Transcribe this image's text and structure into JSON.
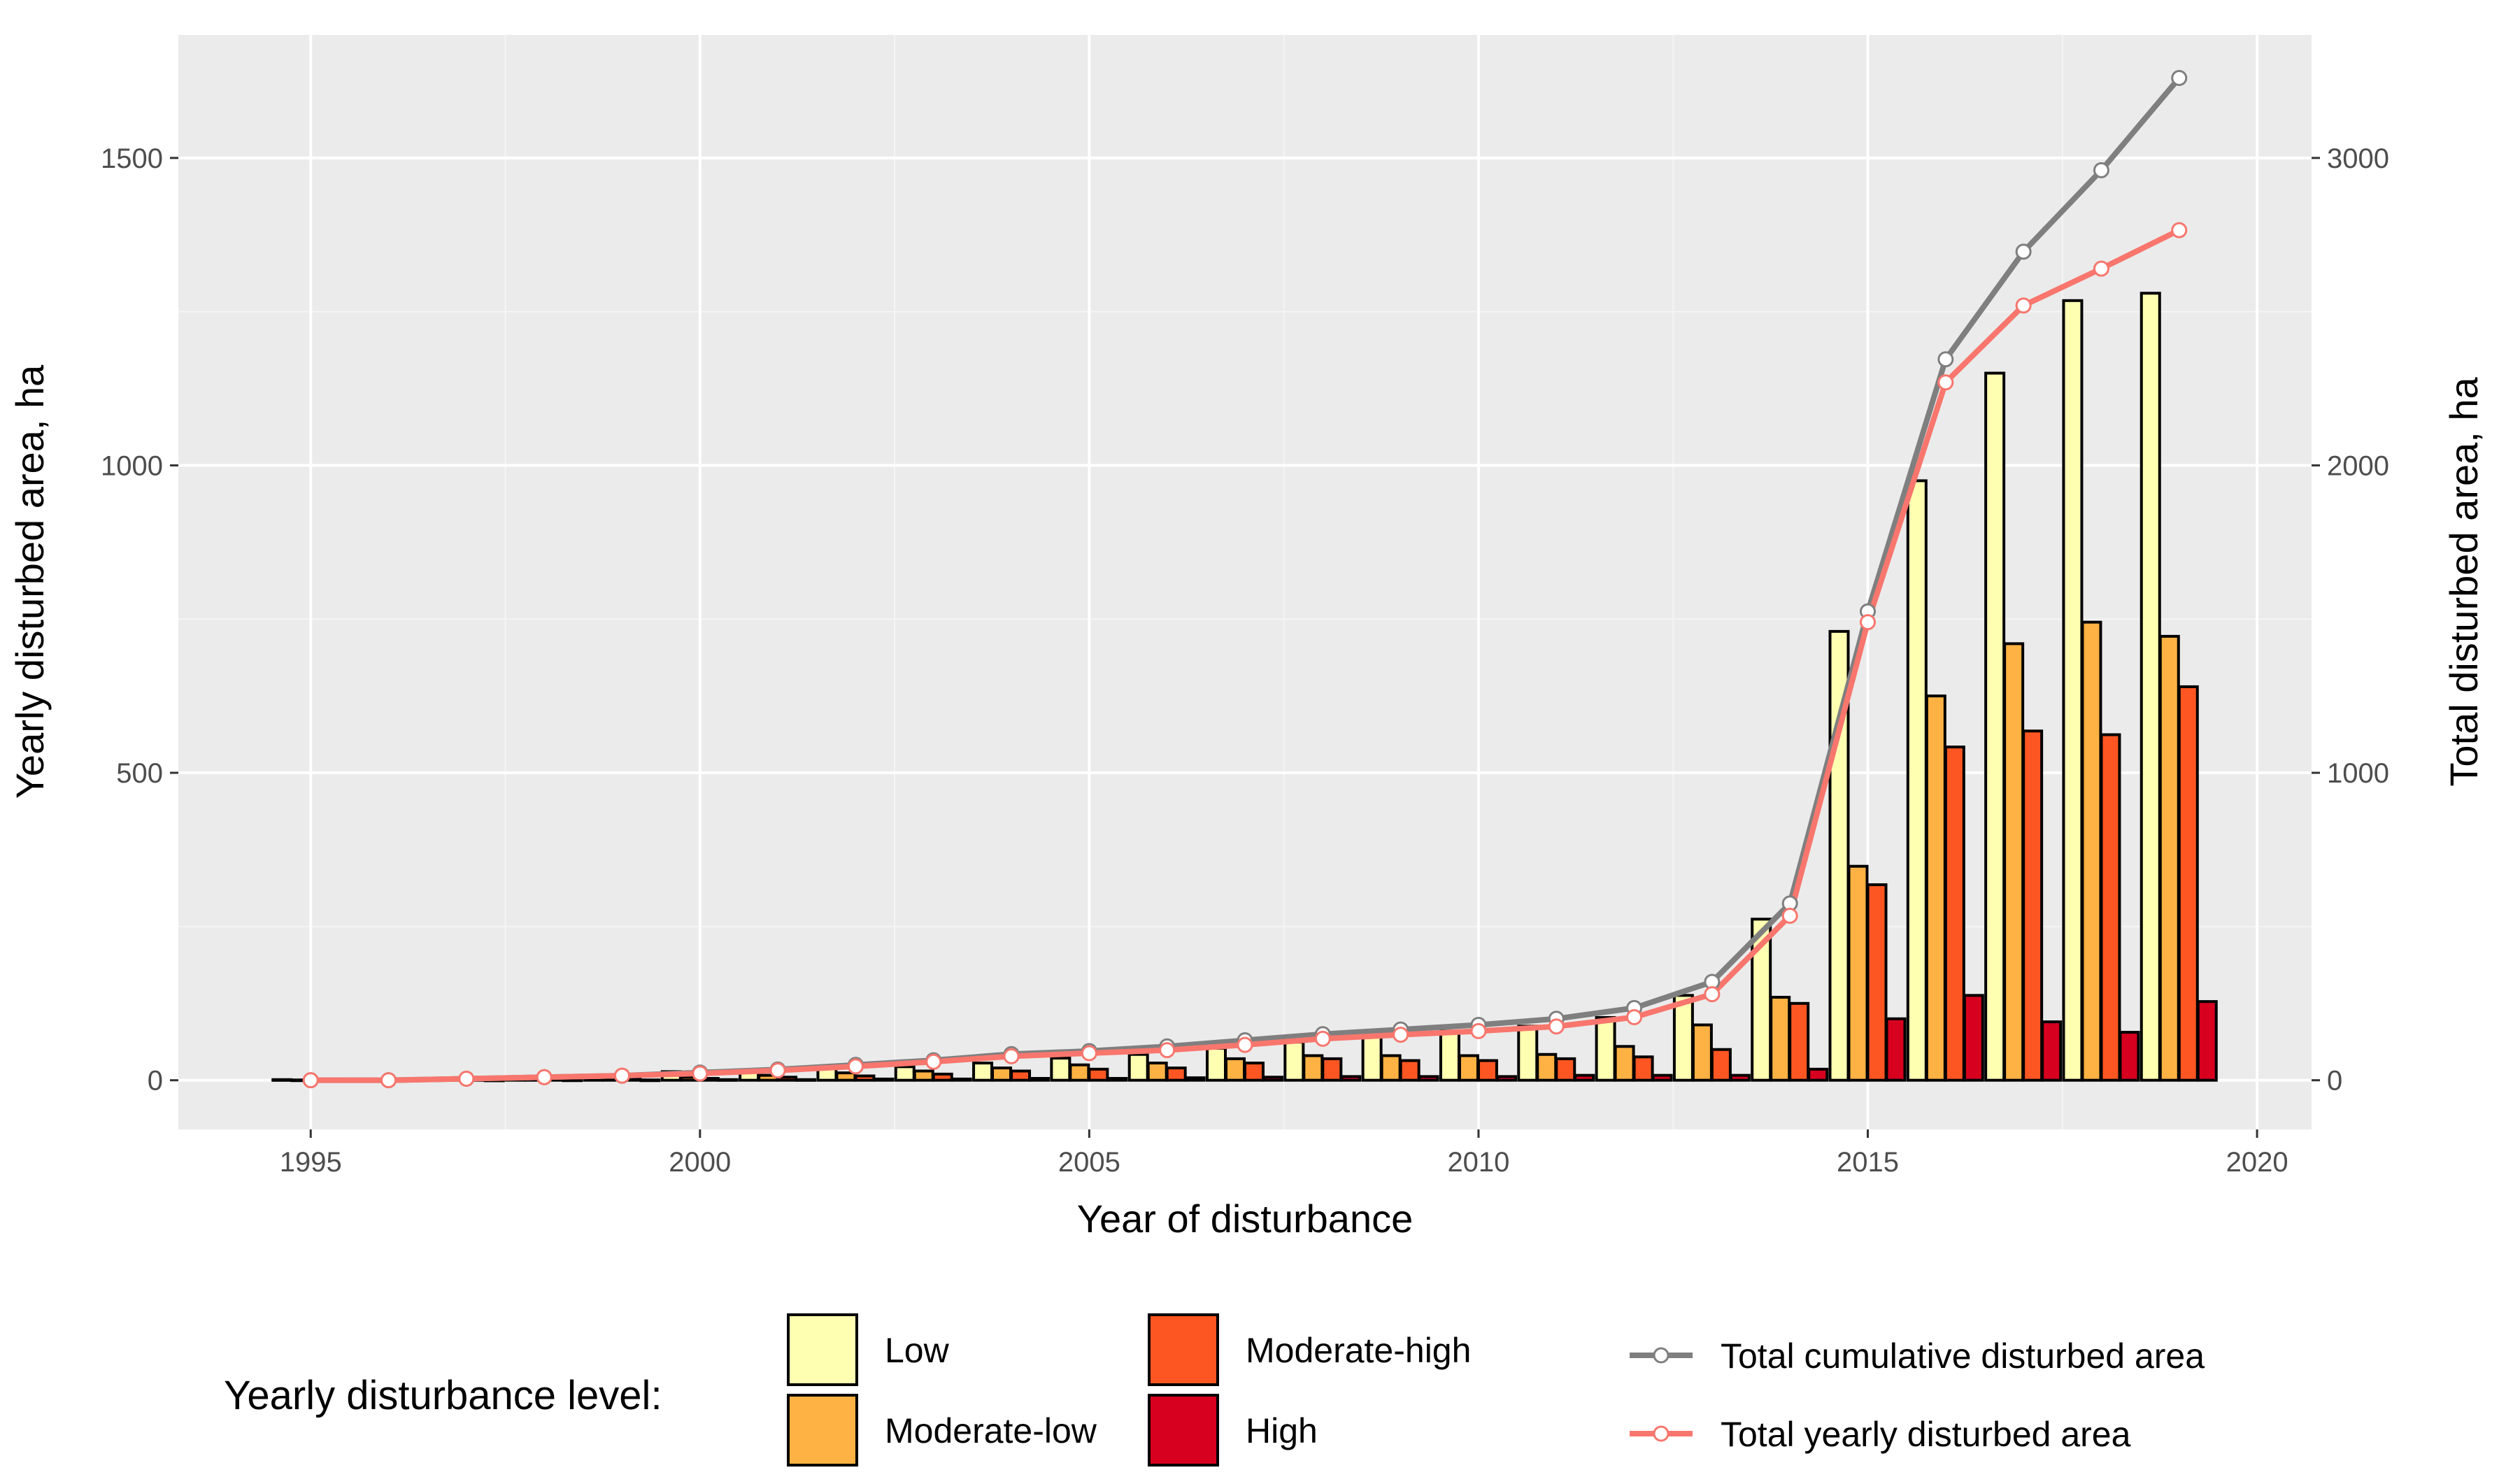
{
  "chart_data": {
    "type": "bar",
    "xlabel": "Year of disturbance",
    "ylabel": "Yearly disturbed area, ha",
    "y2label": "Total disturbed area, ha",
    "xlim": [
      1993.3,
      2020.7
    ],
    "ylim": [
      -80,
      1700
    ],
    "y2lim": [
      -160,
      3400
    ],
    "x_ticks": [
      1995,
      2000,
      2005,
      2010,
      2015,
      2020
    ],
    "x_tick_labels": [
      "1995",
      "2000",
      "2005",
      "2010",
      "2015",
      "2020"
    ],
    "y_ticks": [
      0,
      500,
      1000,
      1500
    ],
    "y_tick_labels": [
      "0",
      "500",
      "1000",
      "1500"
    ],
    "y2_ticks": [
      0,
      1000,
      2000,
      3000
    ],
    "y2_tick_labels": [
      "0",
      "1000",
      "2000",
      "3000"
    ],
    "grid": true,
    "years": [
      1995,
      1996,
      1997,
      1998,
      1999,
      2000,
      2001,
      2002,
      2003,
      2004,
      2005,
      2006,
      2007,
      2008,
      2009,
      2010,
      2011,
      2012,
      2013,
      2014,
      2015,
      2016,
      2017,
      2018,
      2019
    ],
    "bar_series": [
      {
        "name": "Low",
        "color": "#ffffb2",
        "values": [
          1,
          2,
          3,
          4,
          8,
          14,
          16,
          20,
          22,
          28,
          36,
          42,
          52,
          62,
          72,
          80,
          88,
          102,
          138,
          262,
          730,
          975,
          1150,
          1268,
          1280
        ]
      },
      {
        "name": "Moderate-low",
        "color": "#feb243",
        "values": [
          0.5,
          1,
          1.5,
          2,
          3,
          5,
          8,
          12,
          15,
          20,
          25,
          28,
          35,
          40,
          40,
          40,
          42,
          55,
          90,
          135,
          348,
          625,
          710,
          745,
          722
        ]
      },
      {
        "name": "Moderate-high",
        "color": "#fd5622",
        "values": [
          0.3,
          0.5,
          1,
          1.5,
          2,
          3,
          5,
          7,
          10,
          15,
          18,
          20,
          28,
          35,
          32,
          32,
          35,
          38,
          50,
          125,
          318,
          542,
          568,
          562,
          640
        ]
      },
      {
        "name": "High",
        "color": "#d7001e",
        "values": [
          0.1,
          0.2,
          0.3,
          0.5,
          0.5,
          1,
          1,
          2,
          2,
          3,
          3,
          4,
          5,
          6,
          6,
          6,
          8,
          8,
          8,
          18,
          100,
          138,
          95,
          78,
          128
        ]
      }
    ],
    "line_series": [
      {
        "name": "Total cumulative disturbed area",
        "color": "#7f7f7f",
        "axis": "right",
        "values": [
          0,
          0,
          5,
          10,
          15,
          25,
          35,
          50,
          65,
          85,
          95,
          110,
          130,
          150,
          165,
          180,
          200,
          235,
          320,
          575,
          1525,
          2345,
          2695,
          2960,
          3260
        ]
      },
      {
        "name": "Total yearly disturbed area",
        "color": "#f8766d",
        "axis": "right",
        "values": [
          0,
          0,
          5,
          10,
          15,
          22,
          32,
          45,
          60,
          78,
          88,
          98,
          115,
          135,
          148,
          160,
          175,
          205,
          280,
          535,
          1490,
          2270,
          2520,
          2640,
          2765
        ]
      }
    ],
    "legend": {
      "title": "Yearly disturbance level:",
      "placement": "bottom"
    }
  }
}
